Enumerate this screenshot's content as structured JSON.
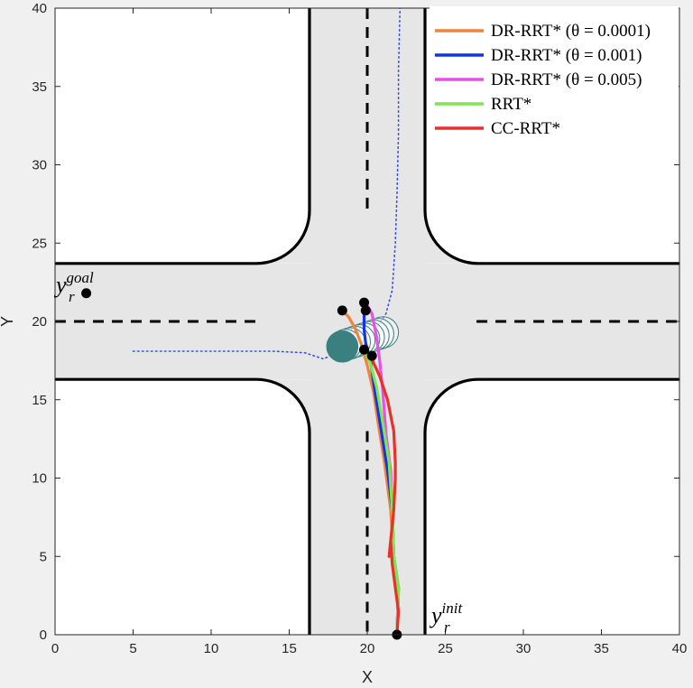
{
  "chart_data": {
    "type": "line",
    "xlabel": "X",
    "ylabel": "Y",
    "xlim": [
      0,
      40
    ],
    "ylim": [
      0,
      40
    ],
    "xticks": [
      0,
      5,
      10,
      15,
      20,
      25,
      30,
      35,
      40
    ],
    "yticks": [
      0,
      5,
      10,
      15,
      20,
      25,
      30,
      35,
      40
    ],
    "legend_position": "top-right",
    "background_color": "#ffffff",
    "road_color": "#e6e6e6",
    "annotations": {
      "goal": {
        "base": "y",
        "sub": "r",
        "sup": "goal",
        "point": [
          2,
          21.8
        ]
      },
      "init": {
        "base": "y",
        "sub": "r",
        "sup": "init",
        "point": [
          21.9,
          0
        ]
      }
    },
    "series": [
      {
        "name": "DR-RRT* (θ = 0.0001)",
        "color": "#f0843a",
        "x": [
          21.9,
          22.0,
          21.7,
          21.5,
          21.1,
          20.7,
          20.4,
          20.0,
          19.6,
          19.2,
          18.8,
          18.4
        ],
        "y": [
          0,
          3.0,
          5.0,
          8.0,
          11.0,
          13.5,
          15.5,
          17.2,
          18.6,
          19.6,
          20.3,
          20.7
        ]
      },
      {
        "name": "DR-RRT* (θ = 0.001)",
        "color": "#1432e6",
        "x": [
          21.9,
          22.0,
          21.7,
          21.6,
          21.3,
          20.9,
          20.5,
          20.2,
          19.9,
          19.8,
          19.8,
          19.8
        ],
        "y": [
          0,
          3.0,
          5.0,
          8.0,
          10.5,
          13.0,
          15.5,
          17.5,
          18.6,
          19.5,
          20.2,
          20.7
        ]
      },
      {
        "name": "DR-RRT* (θ = 0.005)",
        "color": "#e650e6",
        "x": [
          21.9,
          22.0,
          21.7,
          21.6,
          21.5,
          21.2,
          21.0,
          20.8,
          20.6,
          20.3,
          19.9
        ],
        "y": [
          0,
          3.0,
          5.0,
          8.0,
          10.5,
          12.8,
          15.5,
          17.5,
          19.0,
          20.5,
          21.2
        ]
      },
      {
        "name": "RRT*",
        "color": "#7de650",
        "x": [
          21.9,
          22.0,
          21.7,
          21.6,
          21.4,
          21.0,
          20.6,
          20.2,
          19.8
        ],
        "y": [
          0,
          3.0,
          5.0,
          8.0,
          11.0,
          13.5,
          15.8,
          17.3,
          18.2
        ]
      },
      {
        "name": "CC-RRT*",
        "color": "#e63228",
        "x": [
          21.9,
          22.0,
          21.8,
          21.6,
          21.5,
          21.4,
          21.7,
          21.8,
          21.8,
          21.7,
          21.3,
          20.8,
          20.2
        ],
        "y": [
          0,
          1.5,
          3.0,
          4.5,
          6.0,
          5.0,
          8.0,
          10.0,
          11.0,
          13.0,
          15.0,
          16.5,
          17.8
        ]
      }
    ],
    "obstacle_trajectory": {
      "color": "#3c50e6",
      "x": [
        5,
        8,
        11,
        14,
        16,
        17.2,
        18.0,
        19.0,
        20.2,
        21.2,
        21.6,
        21.8,
        21.9,
        22.0,
        22.0,
        22.1
      ],
      "y": [
        18.1,
        18.1,
        18.1,
        18.1,
        18.0,
        17.6,
        18.0,
        18.4,
        19.0,
        20.5,
        22.0,
        25.0,
        28.0,
        32.0,
        36.0,
        40.0
      ]
    },
    "ellipses": {
      "fill_color": "#3a8080",
      "x": [
        18.4,
        18.6,
        18.9,
        19.2,
        19.5,
        19.8,
        20.1,
        20.4,
        20.7,
        21.0
      ],
      "y": [
        18.4,
        18.5,
        18.6,
        18.7,
        18.8,
        18.9,
        19.0,
        19.1,
        19.2,
        19.3
      ],
      "filled_count": 1
    },
    "markers": [
      {
        "x": 2.0,
        "y": 21.8
      },
      {
        "x": 21.9,
        "y": 0
      },
      {
        "x": 18.4,
        "y": 20.7
      },
      {
        "x": 19.8,
        "y": 21.2
      },
      {
        "x": 19.9,
        "y": 20.7
      },
      {
        "x": 19.8,
        "y": 18.2
      },
      {
        "x": 20.3,
        "y": 17.8
      }
    ]
  }
}
